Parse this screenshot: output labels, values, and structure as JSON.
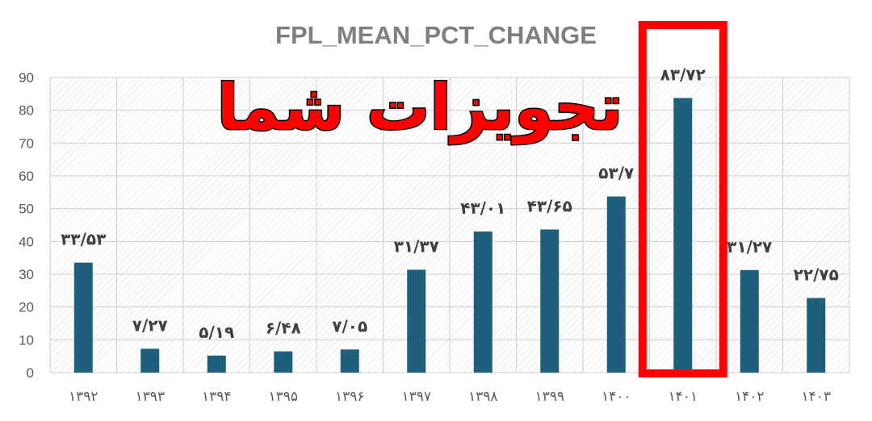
{
  "overlay_text": "تجویزات شما",
  "colors": {
    "bar": "#1f5f7e",
    "highlight": "#ff0000",
    "grid": "#cfcfcf"
  },
  "chart_data": {
    "type": "bar",
    "title": "FPL_MEAN_PCT_CHANGE",
    "xlabel": "",
    "ylabel": "",
    "ylim": [
      0,
      90
    ],
    "yticks": [
      "0",
      "10",
      "20",
      "30",
      "40",
      "50",
      "60",
      "70",
      "80",
      "90"
    ],
    "grid": true,
    "categories": [
      "۱۳۹۲",
      "۱۳۹۳",
      "۱۳۹۴",
      "۱۳۹۵",
      "۱۳۹۶",
      "۱۳۹۷",
      "۱۳۹۸",
      "۱۳۹۹",
      "۱۴۰۰",
      "۱۴۰۱",
      "۱۴۰۲",
      "۱۴۰۳"
    ],
    "values": [
      33.53,
      7.27,
      5.19,
      6.48,
      7.05,
      31.37,
      43.01,
      43.65,
      53.7,
      83.72,
      31.27,
      22.75
    ],
    "data_labels": [
      "۳۳/۵۳",
      "۷/۲۷",
      "۵/۱۹",
      "۶/۴۸",
      "۷/۰۵",
      "۳۱/۳۷",
      "۴۳/۰۱",
      "۴۳/۶۵",
      "۵۳/۷",
      "۸۳/۷۲",
      "۳۱/۲۷",
      "۲۲/۷۵"
    ],
    "highlighted_category": "۱۴۰۱"
  }
}
